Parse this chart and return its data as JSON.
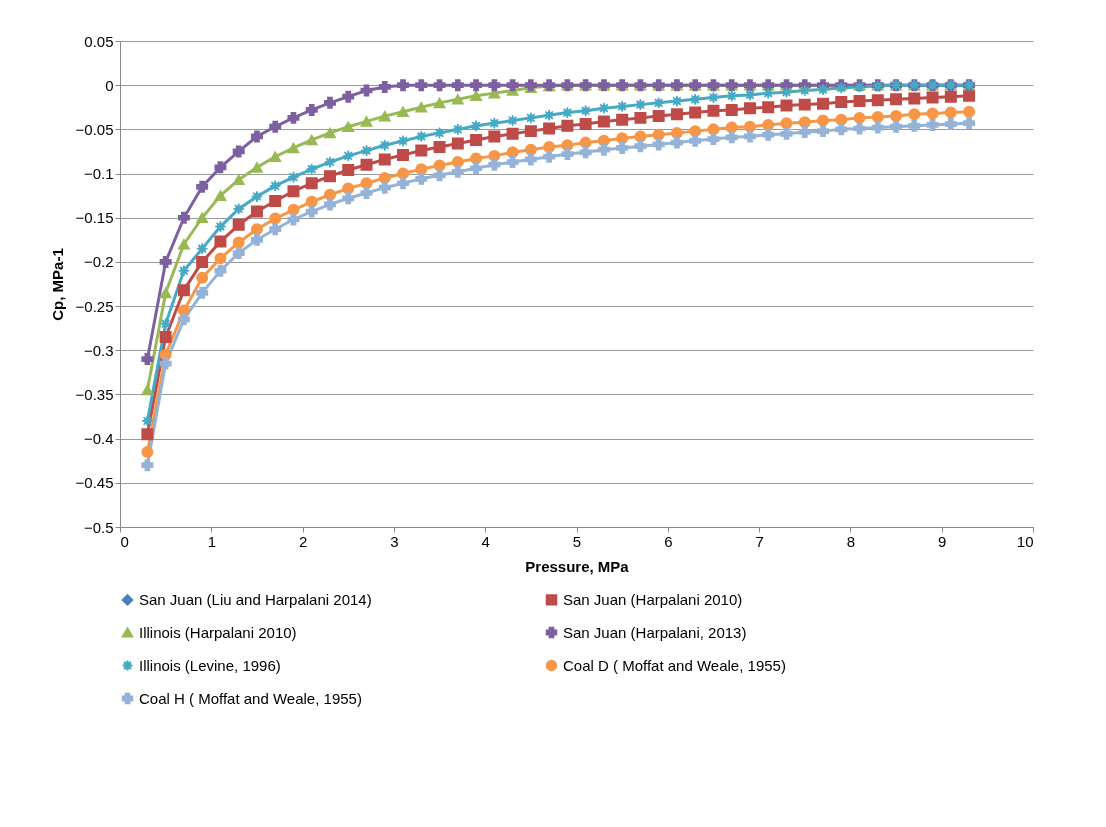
{
  "chart_data": {
    "type": "line",
    "xlabel": "Pressure, MPa",
    "ylabel": "Cp, MPa-1",
    "x": [
      0.3,
      0.5,
      0.7,
      0.9,
      1.1,
      1.3,
      1.5,
      1.7,
      1.9,
      2.1,
      2.3,
      2.5,
      2.7,
      2.9,
      3.1,
      3.3,
      3.5,
      3.7,
      3.9,
      4.1,
      4.3,
      4.5,
      4.7,
      4.9,
      5.1,
      5.3,
      5.5,
      5.7,
      5.9,
      6.1,
      6.3,
      6.5,
      6.7,
      6.9,
      7.1,
      7.3,
      7.5,
      7.7,
      7.9,
      8.1,
      8.3,
      8.5,
      8.7,
      8.9,
      9.1,
      9.3
    ],
    "series": [
      {
        "name": "San Juan (Liu and Harpalani 2014)",
        "color": "#4a7ebb",
        "marker": "diamond",
        "values": [
          null,
          null,
          null,
          null,
          null,
          null,
          null,
          null,
          null,
          null,
          null,
          null,
          null,
          null,
          null,
          null,
          null,
          null,
          null,
          null,
          null,
          null,
          null,
          null,
          null,
          null,
          null,
          null,
          null,
          null,
          null,
          null,
          null,
          null,
          null,
          null,
          null,
          null,
          null,
          null,
          null,
          null,
          null,
          null,
          null,
          null
        ]
      },
      {
        "name": "San Juan (Harpalani 2010)",
        "color": "#be4b48",
        "marker": "square",
        "values": [
          -0.395,
          -0.285,
          -0.232,
          -0.2,
          -0.177,
          -0.158,
          -0.143,
          -0.131,
          -0.12,
          -0.111,
          -0.103,
          -0.096,
          -0.09,
          -0.084,
          -0.079,
          -0.074,
          -0.07,
          -0.066,
          -0.062,
          -0.058,
          -0.055,
          -0.052,
          -0.049,
          -0.046,
          -0.044,
          -0.041,
          -0.039,
          -0.037,
          -0.035,
          -0.033,
          -0.031,
          -0.029,
          -0.028,
          -0.026,
          -0.025,
          -0.023,
          -0.022,
          -0.021,
          -0.019,
          -0.018,
          -0.017,
          -0.016,
          -0.015,
          -0.014,
          -0.013,
          -0.012
        ]
      },
      {
        "name": "Illinois (Harpalani 2010)",
        "color": "#98b954",
        "marker": "triangle",
        "values": [
          -0.345,
          -0.235,
          -0.18,
          -0.15,
          -0.125,
          -0.107,
          -0.093,
          -0.081,
          -0.071,
          -0.062,
          -0.054,
          -0.047,
          -0.041,
          -0.035,
          -0.03,
          -0.025,
          -0.02,
          -0.016,
          -0.012,
          -0.009,
          -0.006,
          -0.003,
          -0.001,
          0,
          0,
          0,
          0,
          0,
          0,
          0,
          0,
          0,
          0,
          0,
          0,
          0,
          0,
          0,
          0,
          0,
          0,
          0,
          0,
          0,
          0,
          0
        ]
      },
      {
        "name": "San Juan (Harpalani, 2013)",
        "color": "#7d60a0",
        "marker": "cross",
        "values": [
          -0.31,
          -0.2,
          -0.15,
          -0.115,
          -0.093,
          -0.075,
          -0.058,
          -0.047,
          -0.037,
          -0.028,
          -0.02,
          -0.013,
          -0.006,
          -0.002,
          0,
          0,
          0,
          0,
          0,
          0,
          0,
          0,
          0,
          0,
          0,
          0,
          0,
          0,
          0,
          0,
          0,
          0,
          0,
          0,
          0,
          0,
          0,
          0,
          0,
          0,
          0,
          0,
          0,
          0,
          0,
          0
        ]
      },
      {
        "name": "Illinois (Levine, 1996)",
        "color": "#46aac5",
        "marker": "star",
        "values": [
          -0.38,
          -0.27,
          -0.21,
          -0.185,
          -0.16,
          -0.14,
          -0.126,
          -0.114,
          -0.104,
          -0.095,
          -0.087,
          -0.08,
          -0.074,
          -0.068,
          -0.063,
          -0.058,
          -0.054,
          -0.05,
          -0.046,
          -0.043,
          -0.04,
          -0.037,
          -0.034,
          -0.031,
          -0.029,
          -0.026,
          -0.024,
          -0.022,
          -0.02,
          -0.018,
          -0.016,
          -0.014,
          -0.012,
          -0.011,
          -0.009,
          -0.008,
          -0.006,
          -0.005,
          -0.003,
          -0.002,
          -0.001,
          0,
          0,
          0,
          0,
          0
        ]
      },
      {
        "name": "Coal D ( Moffat and Weale, 1955)",
        "color": "#f79646",
        "marker": "circle",
        "values": [
          -0.415,
          -0.305,
          -0.255,
          -0.218,
          -0.196,
          -0.178,
          -0.163,
          -0.151,
          -0.141,
          -0.132,
          -0.124,
          -0.117,
          -0.111,
          -0.105,
          -0.1,
          -0.095,
          -0.091,
          -0.087,
          -0.083,
          -0.08,
          -0.076,
          -0.073,
          -0.07,
          -0.068,
          -0.065,
          -0.063,
          -0.06,
          -0.058,
          -0.056,
          -0.054,
          -0.052,
          -0.05,
          -0.048,
          -0.047,
          -0.045,
          -0.043,
          -0.042,
          -0.04,
          -0.039,
          -0.037,
          -0.036,
          -0.035,
          -0.033,
          -0.032,
          -0.031,
          -0.03
        ]
      },
      {
        "name": "Coal H ( Moffat and Weale, 1955)",
        "color": "#95b3d7",
        "marker": "cross",
        "values": [
          -0.43,
          -0.315,
          -0.265,
          -0.235,
          -0.21,
          -0.19,
          -0.175,
          -0.163,
          -0.152,
          -0.143,
          -0.135,
          -0.128,
          -0.122,
          -0.116,
          -0.111,
          -0.106,
          -0.102,
          -0.098,
          -0.094,
          -0.09,
          -0.087,
          -0.084,
          -0.081,
          -0.078,
          -0.076,
          -0.073,
          -0.071,
          -0.069,
          -0.067,
          -0.065,
          -0.063,
          -0.061,
          -0.059,
          -0.058,
          -0.056,
          -0.055,
          -0.053,
          -0.052,
          -0.05,
          -0.049,
          -0.048,
          -0.047,
          -0.046,
          -0.045,
          -0.044,
          -0.043
        ]
      }
    ],
    "xlim": [
      0,
      10
    ],
    "xticks": [
      0,
      1,
      2,
      3,
      4,
      5,
      6,
      7,
      8,
      9,
      10
    ],
    "ylim": [
      -0.5,
      0.05
    ],
    "yticks": [
      -0.5,
      -0.45,
      -0.4,
      -0.35,
      -0.3,
      -0.25,
      -0.2,
      -0.15,
      -0.1,
      -0.05,
      0,
      0.05
    ],
    "grid": "y",
    "legend": "bottom",
    "line_style": "solid"
  }
}
